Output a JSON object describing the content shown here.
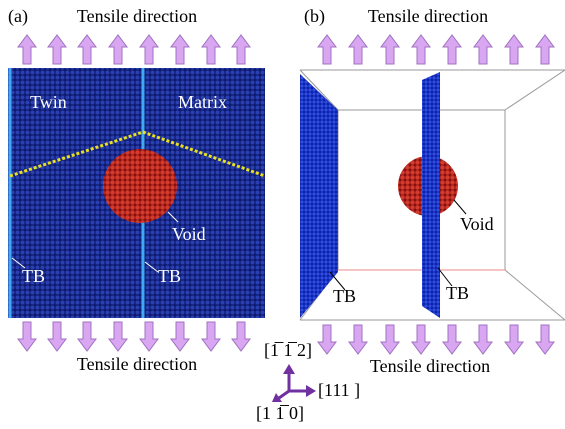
{
  "panel_a": {
    "label": "(a)",
    "top_label": "Tensile direction",
    "bottom_label": "Tensile direction",
    "regions": [
      "Twin",
      "Matrix"
    ],
    "void_label": "Void",
    "boundary_labels": [
      "TB",
      "TB"
    ]
  },
  "panel_b": {
    "label": "(b)",
    "top_label": "Tensile direction",
    "bottom_label": "Tensile direction",
    "void_label": "Void",
    "boundary_labels": [
      "TB",
      "TB"
    ]
  },
  "axes": {
    "up": "[1̅ 1̅ 2]",
    "right": "[111 ]",
    "down": "[1 1̅ 0]"
  }
}
